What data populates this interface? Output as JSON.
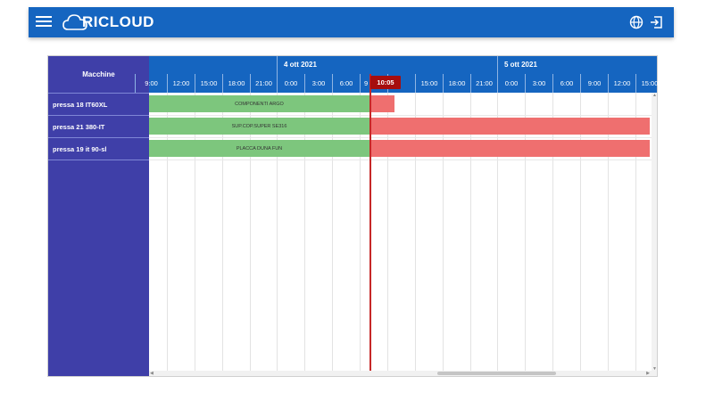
{
  "appbar": {
    "logo_text": "RICLOUD",
    "menu_icon": "hamburger-menu-icon",
    "language_icon": "globe-icon",
    "logout_icon": "logout-icon",
    "color": "#1565c0"
  },
  "scheduler": {
    "resource_header": "Macchine",
    "resources": [
      "pressa 18 IT60XL",
      "pressa 21 380-IT",
      "pressa 19 it 90-sl"
    ],
    "days": [
      "4 ott 2021",
      "5 ott 2021"
    ],
    "hours": [
      "9:00",
      "12:00",
      "15:00",
      "18:00",
      "21:00",
      "0:00",
      "3:00",
      "6:00",
      "9",
      "10:05",
      "",
      "15:00",
      "18:00",
      "21:00",
      "0:00",
      "3:00",
      "6:00",
      "9:00",
      "12:00",
      "15:00"
    ],
    "current_time": "10:05",
    "bars": [
      {
        "label": "COMPONENTI ARGO",
        "status": "completed"
      },
      {
        "label": "SUP.COP.SUPER SE316",
        "status": "completed"
      },
      {
        "label": "PLACCA DUNA FUN",
        "status": "completed"
      }
    ],
    "colors": {
      "completed": "#7dc67d",
      "pending": "#ef6f6f",
      "resource_column": "#3f3fa8",
      "now_line": "#c62828"
    }
  }
}
